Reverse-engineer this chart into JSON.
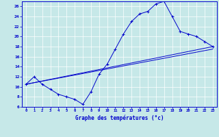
{
  "xlabel": "Graphe des températures (°c)",
  "xlim": [
    -0.5,
    23.5
  ],
  "ylim": [
    6,
    27
  ],
  "xticks": [
    0,
    1,
    2,
    3,
    4,
    5,
    6,
    7,
    8,
    9,
    10,
    11,
    12,
    13,
    14,
    15,
    16,
    17,
    18,
    19,
    20,
    21,
    22,
    23
  ],
  "yticks": [
    6,
    8,
    10,
    12,
    14,
    16,
    18,
    20,
    22,
    24,
    26
  ],
  "bg_color": "#c6e8e8",
  "plot_bg": "#c6e8e8",
  "line_color": "#0000cc",
  "grid_color": "#ffffff",
  "line1_x": [
    0,
    1,
    2,
    3,
    4,
    5,
    6,
    7,
    8,
    9,
    10,
    11,
    12,
    13,
    14,
    15,
    16,
    17,
    18,
    19,
    20,
    21,
    22,
    23
  ],
  "line1_y": [
    10.5,
    12.0,
    10.5,
    9.5,
    8.5,
    8.0,
    7.5,
    6.5,
    9.0,
    12.5,
    14.5,
    17.5,
    20.5,
    23.0,
    24.5,
    25.0,
    26.5,
    27.0,
    24.0,
    21.0,
    20.5,
    20.0,
    19.0,
    18.0
  ],
  "line2_x": [
    0,
    23
  ],
  "line2_y": [
    10.5,
    17.5
  ],
  "line3_x": [
    0,
    23
  ],
  "line3_y": [
    10.5,
    18.0
  ]
}
